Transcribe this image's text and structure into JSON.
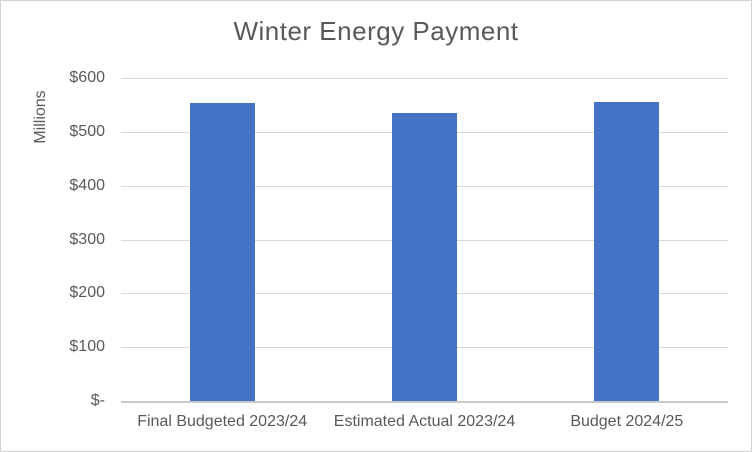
{
  "chart_data": {
    "type": "bar",
    "title": "Winter Energy Payment",
    "ylabel": "Millions",
    "xlabel": "",
    "categories": [
      "Final Budgeted 2023/24",
      "Estimated Actual 2023/24",
      "Budget 2024/25"
    ],
    "values": [
      553,
      535,
      555
    ],
    "ylim": [
      0,
      600
    ],
    "ytick_step": 100,
    "ytick_labels_bottom_to_top": [
      "$-",
      "$100",
      "$200",
      "$300",
      "$400",
      "$500",
      "$600"
    ],
    "grid": true,
    "legend": "none",
    "bar_color": "#4472C4",
    "gridline_color": "#D9D9D9",
    "axis_line_color": "#C9C9C9",
    "text_color": "#595959",
    "title_color": "#595959",
    "border_color": "#D3D3D3",
    "background_color": "#FFFFFF"
  }
}
